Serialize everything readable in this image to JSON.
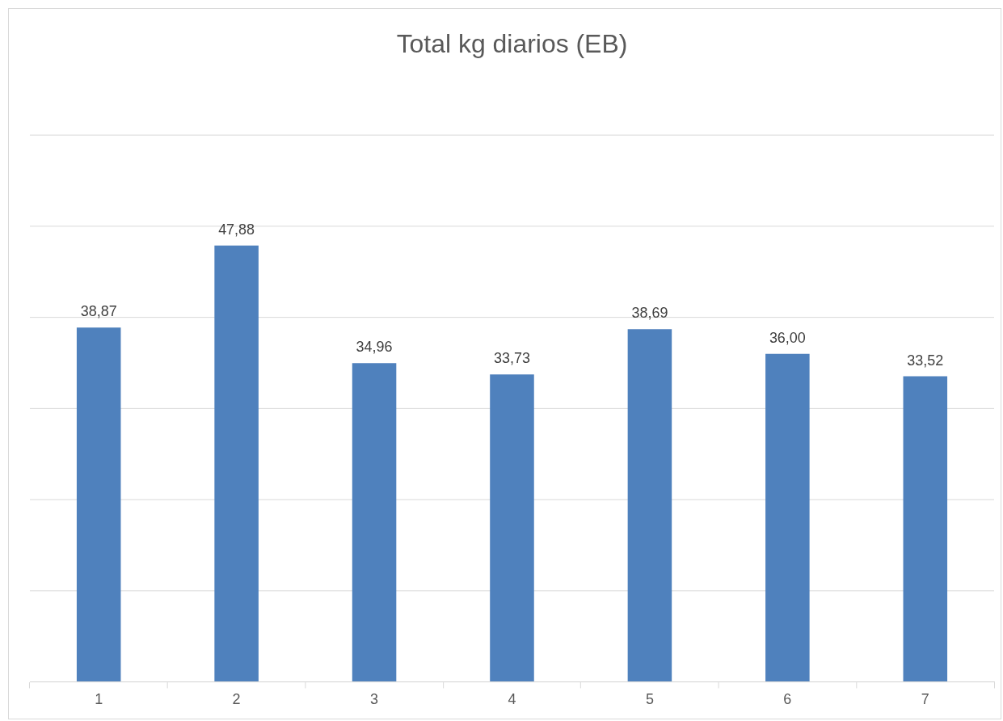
{
  "chart_data": {
    "type": "bar",
    "title": "Total kg diarios (EB)",
    "categories": [
      "1",
      "2",
      "3",
      "4",
      "5",
      "6",
      "7"
    ],
    "values": [
      38.87,
      47.88,
      34.96,
      33.73,
      38.69,
      36.0,
      33.52
    ],
    "value_labels": [
      "38,87",
      "47,88",
      "34,96",
      "33,73",
      "38,69",
      "36,00",
      "33,52"
    ],
    "color": "#4f81bd",
    "ylim": [
      0,
      60
    ],
    "yticks": [
      {
        "value": 0,
        "label": null
      },
      {
        "value": 10,
        "label": null
      },
      {
        "value": 20,
        "label": null
      },
      {
        "value": 30,
        "label": null
      },
      {
        "value": 40,
        "label": null
      },
      {
        "value": 50,
        "label": null
      },
      {
        "value": 60,
        "label": null
      }
    ],
    "grid": "y",
    "tick_labels": "x"
  }
}
